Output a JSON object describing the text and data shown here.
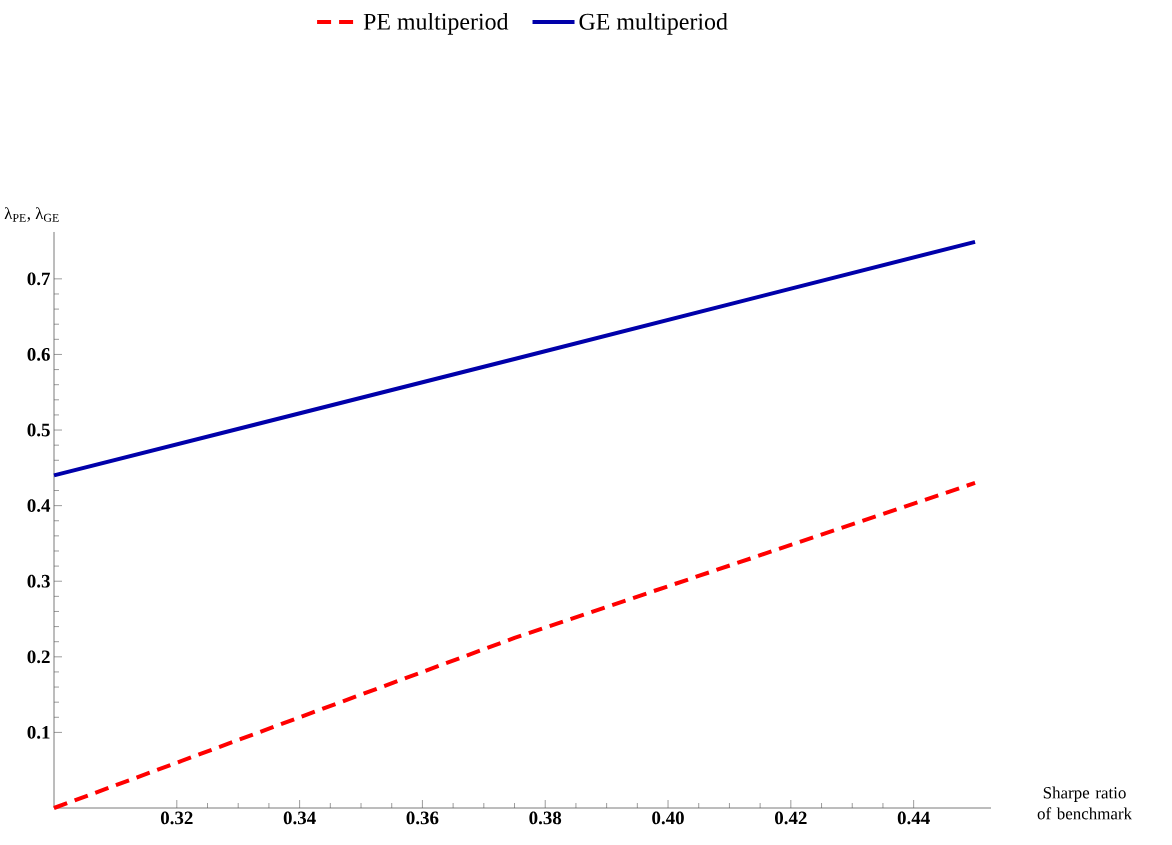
{
  "chart_data": {
    "type": "line",
    "xlabel": "Sharpe ratio of benchmark",
    "ylabel": "λ$_{PE}$, λ$_{GE}$",
    "x": [
      0.3,
      0.375,
      0.45
    ],
    "series": [
      {
        "name": "PE multiperiod",
        "color": "#ff0000",
        "line_style": "dashed",
        "values": [
          0,
          0.225,
          0.43
        ]
      },
      {
        "name": "GE multiperiod",
        "color": "#0000aa",
        "line_style": "solid",
        "values": [
          0.44,
          0.594,
          0.749
        ]
      }
    ],
    "xlim": [
      0.3,
      0.4526
    ],
    "ylim": [
      0,
      0.762
    ],
    "xticks": [
      0.32,
      0.34,
      0.36,
      0.38,
      {
        "value": 0.4,
        "label": "0.40"
      },
      0.42,
      0.44
    ],
    "yticks": [
      0.1,
      0.2,
      0.3,
      0.4,
      0.5,
      0.6,
      0.7
    ],
    "grid": false,
    "legend": "top",
    "marker": "none"
  }
}
